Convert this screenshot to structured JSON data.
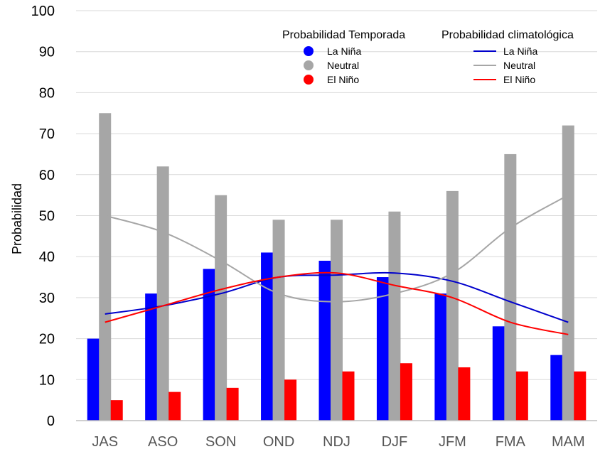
{
  "chart_data": {
    "type": "bar",
    "title": "",
    "xlabel": "",
    "ylabel": "Probabilidad",
    "ylim": [
      0,
      100
    ],
    "yticks": [
      0,
      10,
      20,
      30,
      40,
      50,
      60,
      70,
      80,
      90,
      100
    ],
    "grid": true,
    "categories": [
      "JAS",
      "ASO",
      "SON",
      "OND",
      "NDJ",
      "DJF",
      "JFM",
      "FMA",
      "MAM"
    ],
    "series": [
      {
        "name": "La Niña",
        "kind": "bar",
        "color": "#0000ff",
        "values": [
          20,
          31,
          37,
          41,
          39,
          35,
          31,
          23,
          16
        ]
      },
      {
        "name": "Neutral",
        "kind": "bar",
        "color": "#a6a6a6",
        "values": [
          75,
          62,
          55,
          49,
          49,
          51,
          56,
          65,
          72
        ]
      },
      {
        "name": "El Niño",
        "kind": "bar",
        "color": "#ff0000",
        "values": [
          5,
          7,
          8,
          10,
          12,
          14,
          13,
          12,
          12
        ]
      }
    ],
    "climatology": [
      {
        "name": "La Niña",
        "kind": "line",
        "color": "#0000cc",
        "values": [
          26,
          28,
          31,
          35,
          35.5,
          36,
          34,
          29,
          24
        ]
      },
      {
        "name": "Neutral",
        "kind": "line",
        "color": "#a6a6a6",
        "values": [
          50,
          46,
          39,
          31,
          29,
          31,
          36,
          47,
          55
        ]
      },
      {
        "name": "El Niño",
        "kind": "line",
        "color": "#ff0000",
        "values": [
          24,
          28,
          32,
          35,
          36,
          33,
          30,
          24,
          21
        ]
      }
    ],
    "legend_bars_title": "Probabilidad Temporada",
    "legend_lines_title": "Probabilidad climatológica",
    "legend_placement": "top-right"
  }
}
